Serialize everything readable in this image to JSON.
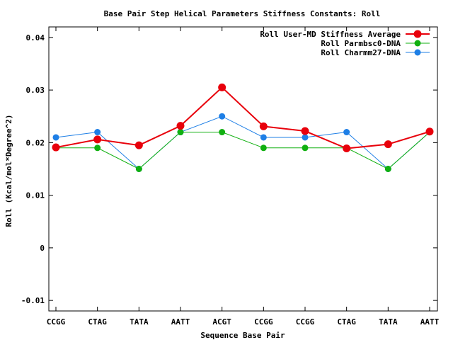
{
  "chart_data": {
    "type": "line",
    "title": "Base Pair Step Helical Parameters Stiffness Constants: Roll",
    "xlabel": "Sequence Base Pair",
    "ylabel": "Roll (Kcal/mol*Degree^2)",
    "categories": [
      "CCGG",
      "CTAG",
      "TATA",
      "AATT",
      "ACGT",
      "CCGG",
      "CCGG",
      "CTAG",
      "TATA",
      "AATT"
    ],
    "ylim": [
      -0.012,
      0.042
    ],
    "yticks": [
      -0.01,
      0,
      0.01,
      0.02,
      0.03,
      0.04
    ],
    "ytick_labels": [
      "-0.01",
      "0",
      "0.01",
      "0.02",
      "0.03",
      "0.04"
    ],
    "grid": false,
    "legend_position": "top-right",
    "series": [
      {
        "name": "Roll User-MD Stiffness Average",
        "color": "#e8000b",
        "values": [
          0.0191,
          0.0206,
          0.0195,
          0.0232,
          0.0305,
          0.0231,
          0.0222,
          0.0189,
          0.0197,
          0.0221
        ]
      },
      {
        "name": "Roll Parmbsc0-DNA",
        "color": "#10b010",
        "values": [
          0.019,
          0.019,
          0.015,
          0.022,
          0.022,
          0.019,
          0.019,
          0.019,
          0.015,
          0.022
        ]
      },
      {
        "name": "Roll Charmm27-DNA",
        "color": "#1e7fe6",
        "values": [
          0.021,
          0.022,
          0.015,
          0.022,
          0.025,
          0.021,
          0.021,
          0.022,
          0.015,
          0.022
        ]
      }
    ]
  }
}
